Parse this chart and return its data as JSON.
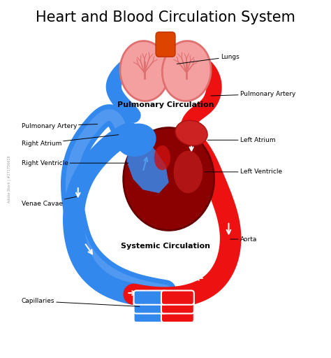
{
  "title": "Heart and Blood Circulation System",
  "title_fontsize": 15,
  "red_color": "#EE1111",
  "dark_red": "#8B0000",
  "blue_color": "#3388EE",
  "blue_light": "#66AAFF",
  "pink_color": "#F4A0A0",
  "pink_dark": "#E07070",
  "lung_inner": "#cc4444",
  "white": "#FFFFFF",
  "labels": {
    "lungs": "Lungs",
    "pulm_circ": "Pulmonary Circulation",
    "pulm_artery_left": "Pulmonary Artery",
    "pulm_artery_right": "Pulmonary Artery",
    "right_atrium": "Right Atrium",
    "left_atrium": "Left Atrium",
    "right_ventricle": "Right Ventricle",
    "left_ventricle": "Left Ventricle",
    "venae_cavae": "Venae Cavae",
    "aorta": "Aorta",
    "systemic_circ": "Systemic Circulation",
    "capillaries": "Capillaries"
  },
  "label_fontsize": 6.5,
  "bold_label_fontsize": 8
}
